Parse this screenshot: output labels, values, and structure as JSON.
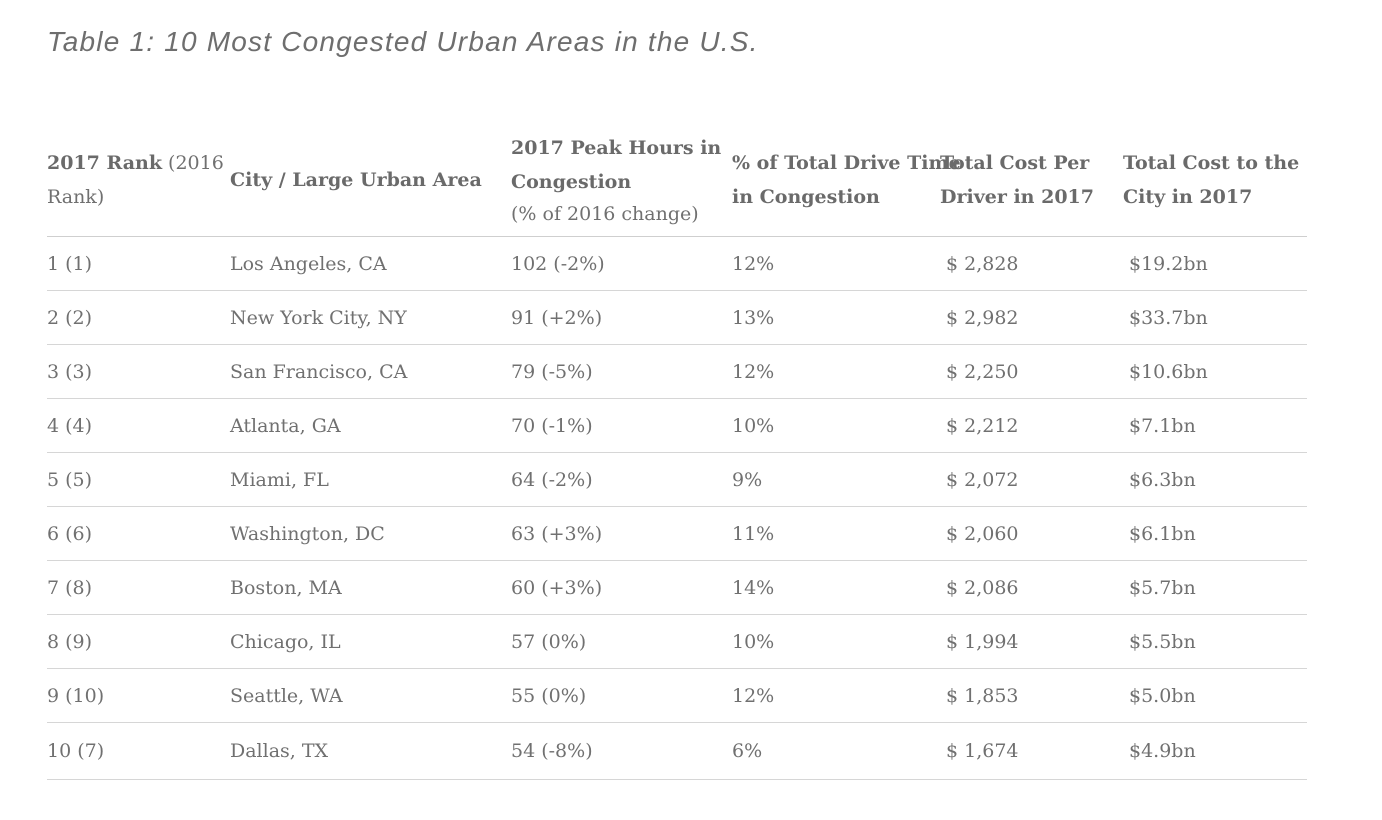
{
  "title": "Table 1: 10 Most Congested Urban Areas in the U.S.",
  "table": {
    "headers": {
      "rank_bold": "2017 Rank",
      "rank_rest_a": " (2016",
      "rank_rest_b": "Rank)",
      "city": "City / Large Urban Area",
      "peak_line1": "2017 Peak Hours in",
      "peak_line2": "Congestion",
      "peak_sub": "(% of 2016 change)",
      "pct_line1": "% of Total Drive Time",
      "pct_line2": "in Congestion",
      "driver_line1": "Total Cost Per",
      "driver_line2": "Driver in 2017",
      "city_cost_line1": "Total Cost to the",
      "city_cost_line2": "City in 2017"
    },
    "rows": [
      {
        "rank": "1 (1)",
        "city": "Los Angeles, CA",
        "peak": "102 (-2%)",
        "pct": "12%",
        "cost_driver": "$ 2,828",
        "cost_city": "$19.2bn"
      },
      {
        "rank": "2 (2)",
        "city": "New York City, NY",
        "peak": "91 (+2%)",
        "pct": "13%",
        "cost_driver": "$ 2,982",
        "cost_city": "$33.7bn"
      },
      {
        "rank": "3 (3)",
        "city": "San Francisco, CA",
        "peak": "79 (-5%)",
        "pct": "12%",
        "cost_driver": "$ 2,250",
        "cost_city": "$10.6bn"
      },
      {
        "rank": "4 (4)",
        "city": "Atlanta, GA",
        "peak": "70 (-1%)",
        "pct": "10%",
        "cost_driver": "$ 2,212",
        "cost_city": "$7.1bn"
      },
      {
        "rank": "5 (5)",
        "city": "Miami, FL",
        "peak": "64 (-2%)",
        "pct": "9%",
        "cost_driver": "$ 2,072",
        "cost_city": "$6.3bn"
      },
      {
        "rank": "6 (6)",
        "city": "Washington, DC",
        "peak": "63 (+3%)",
        "pct": "11%",
        "cost_driver": "$ 2,060",
        "cost_city": "$6.1bn"
      },
      {
        "rank": "7 (8)",
        "city": "Boston, MA",
        "peak": "60 (+3%)",
        "pct": "14%",
        "cost_driver": "$ 2,086",
        "cost_city": "$5.7bn"
      },
      {
        "rank": "8 (9)",
        "city": "Chicago, IL",
        "peak": "57 (0%)",
        "pct": "10%",
        "cost_driver": "$ 1,994",
        "cost_city": "$5.5bn"
      },
      {
        "rank": "9 (10)",
        "city": "Seattle, WA",
        "peak": "55 (0%)",
        "pct": "12%",
        "cost_driver": "$ 1,853",
        "cost_city": "$5.0bn"
      },
      {
        "rank": "10 (7)",
        "city": "Dallas, TX",
        "peak": "54 (-8%)",
        "pct": "6%",
        "cost_driver": "$ 1,674",
        "cost_city": "$4.9bn"
      }
    ]
  }
}
